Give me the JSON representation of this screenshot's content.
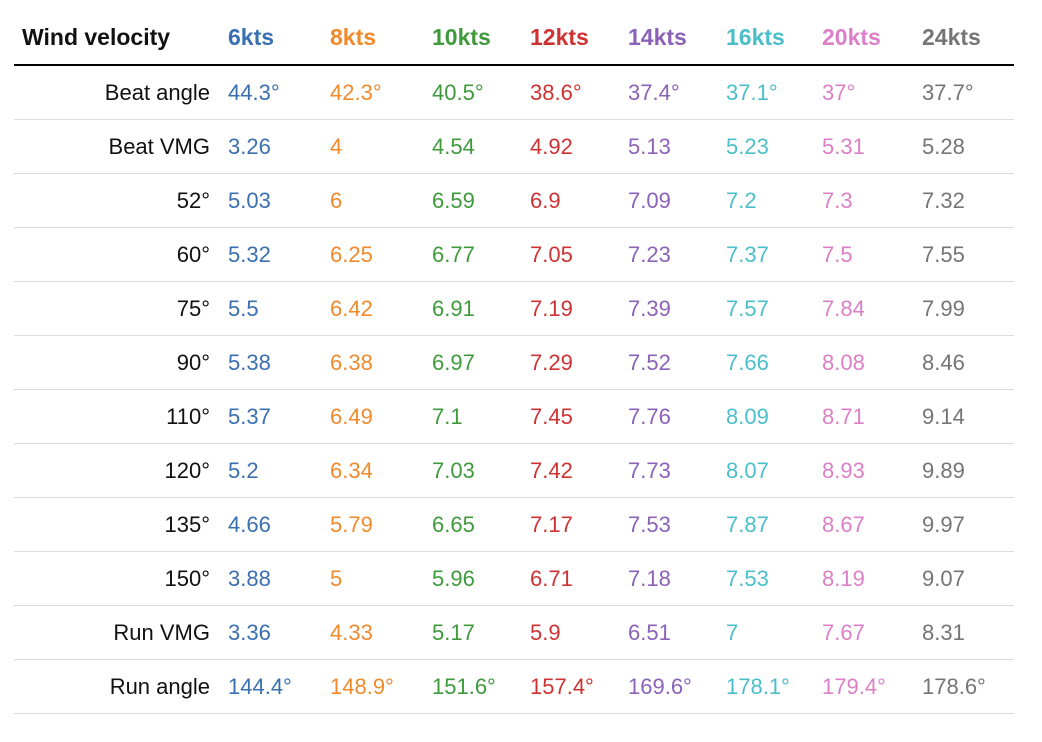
{
  "table": {
    "corner_label": "Wind velocity",
    "columns": [
      {
        "label": "6kts",
        "color": "#3a6fb0"
      },
      {
        "label": "8kts",
        "color": "#f08a2c"
      },
      {
        "label": "10kts",
        "color": "#3f9a3c"
      },
      {
        "label": "12kts",
        "color": "#cf3232"
      },
      {
        "label": "14kts",
        "color": "#8c62b8"
      },
      {
        "label": "16kts",
        "color": "#4bbfc9"
      },
      {
        "label": "20kts",
        "color": "#dc7fc7"
      },
      {
        "label": "24kts",
        "color": "#757575"
      }
    ],
    "rows": [
      {
        "label": "Beat angle",
        "values": [
          "44.3°",
          "42.3°",
          "40.5°",
          "38.6°",
          "37.4°",
          "37.1°",
          "37°",
          "37.7°"
        ]
      },
      {
        "label": "Beat VMG",
        "values": [
          "3.26",
          "4",
          "4.54",
          "4.92",
          "5.13",
          "5.23",
          "5.31",
          "5.28"
        ]
      },
      {
        "label": "52°",
        "values": [
          "5.03",
          "6",
          "6.59",
          "6.9",
          "7.09",
          "7.2",
          "7.3",
          "7.32"
        ]
      },
      {
        "label": "60°",
        "values": [
          "5.32",
          "6.25",
          "6.77",
          "7.05",
          "7.23",
          "7.37",
          "7.5",
          "7.55"
        ]
      },
      {
        "label": "75°",
        "values": [
          "5.5",
          "6.42",
          "6.91",
          "7.19",
          "7.39",
          "7.57",
          "7.84",
          "7.99"
        ]
      },
      {
        "label": "90°",
        "values": [
          "5.38",
          "6.38",
          "6.97",
          "7.29",
          "7.52",
          "7.66",
          "8.08",
          "8.46"
        ]
      },
      {
        "label": "110°",
        "values": [
          "5.37",
          "6.49",
          "7.1",
          "7.45",
          "7.76",
          "8.09",
          "8.71",
          "9.14"
        ]
      },
      {
        "label": "120°",
        "values": [
          "5.2",
          "6.34",
          "7.03",
          "7.42",
          "7.73",
          "8.07",
          "8.93",
          "9.89"
        ]
      },
      {
        "label": "135°",
        "values": [
          "4.66",
          "5.79",
          "6.65",
          "7.17",
          "7.53",
          "7.87",
          "8.67",
          "9.97"
        ]
      },
      {
        "label": "150°",
        "values": [
          "3.88",
          "5",
          "5.96",
          "6.71",
          "7.18",
          "7.53",
          "8.19",
          "9.07"
        ]
      },
      {
        "label": "Run VMG",
        "values": [
          "3.36",
          "4.33",
          "5.17",
          "5.9",
          "6.51",
          "7",
          "7.67",
          "8.31"
        ]
      },
      {
        "label": "Run angle",
        "values": [
          "144.4°",
          "148.9°",
          "151.6°",
          "157.4°",
          "169.6°",
          "178.1°",
          "179.4°",
          "178.6°"
        ]
      }
    ]
  }
}
